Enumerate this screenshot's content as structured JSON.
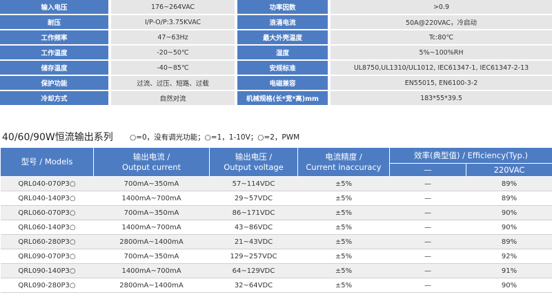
{
  "specs": [
    {
      "label": "输入电压",
      "value": "176~264VAC",
      "label2": "功率因数",
      "value2": ">0.9"
    },
    {
      "label": "耐压",
      "value": "I/P-O/P:3.75KVAC",
      "label2": "浪涌电流",
      "value2": "50A@220VAC，冷启动"
    },
    {
      "label": "工作频率",
      "value": "47~63Hz",
      "label2": "最大外壳温度",
      "value2": "Tc:80℃"
    },
    {
      "label": "工作温度",
      "value": "-20~50℃",
      "label2": "湿度",
      "value2": "5%~100%RH"
    },
    {
      "label": "储存温度",
      "value": "-40~85℃",
      "label2": "安规标准",
      "value2": "UL8750,UL1310/UL1012, IEC61347-1, IEC61347-2-13"
    },
    {
      "label": "保护功能",
      "value": "过流、过压、短路、过载",
      "label2": "电磁兼容",
      "value2": "EN55015, EN6100-3-2"
    },
    {
      "label": "冷却方式",
      "value": "自然对流",
      "label2": "机械规格(长*宽*高)mm",
      "value2": "183*55*39.5"
    }
  ],
  "series_title": "40/60/90W恒流输出系列",
  "series_legend": "○=0，没有调光功能；○=1，1-10V；○=2，PWM",
  "table": {
    "headers": {
      "model": "型号 / Models",
      "current_cn": "输出电流 /",
      "current_en": "Output current",
      "voltage_cn": "输出电压 /",
      "voltage_en": "Output voltage",
      "accuracy_cn": "电流精度 /",
      "accuracy_en": "Current inaccuracy",
      "efficiency": "效率(典型值) / Efficiency(Typ.)",
      "eff_sub1": "—",
      "eff_sub2": "220VAC"
    },
    "rows": [
      {
        "model": "QRL040-070P3○",
        "current": "700mA~350mA",
        "voltage": "57~114VDC",
        "accuracy": "±5%",
        "eff1": "—",
        "eff2": "89%"
      },
      {
        "model": "QRL040-140P3○",
        "current": "1400mA~700mA",
        "voltage": "29~57VDC",
        "accuracy": "±5%",
        "eff1": "—",
        "eff2": "89%"
      },
      {
        "model": "QRL060-070P3○",
        "current": "700mA~350mA",
        "voltage": "86~171VDC",
        "accuracy": "±5%",
        "eff1": "—",
        "eff2": "90%"
      },
      {
        "model": "QRL060-140P3○",
        "current": "1400mA~700mA",
        "voltage": "43~86VDC",
        "accuracy": "±5%",
        "eff1": "—",
        "eff2": "90%"
      },
      {
        "model": "QRL060-280P3○",
        "current": "2800mA~1400mA",
        "voltage": "21~43VDC",
        "accuracy": "±5%",
        "eff1": "—",
        "eff2": "89%"
      },
      {
        "model": "QRL090-070P3○",
        "current": "700mA~350mA",
        "voltage": "129~257VDC",
        "accuracy": "±5%",
        "eff1": "—",
        "eff2": "92%"
      },
      {
        "model": "QRL090-140P3○",
        "current": "1400mA~700mA",
        "voltage": "64~129VDC",
        "accuracy": "±5%",
        "eff1": "—",
        "eff2": "91%"
      },
      {
        "model": "QRL090-280P3○",
        "current": "2800mA~1400mA",
        "voltage": "32~64VDC",
        "accuracy": "±5%",
        "eff1": "—",
        "eff2": "90%"
      }
    ]
  }
}
